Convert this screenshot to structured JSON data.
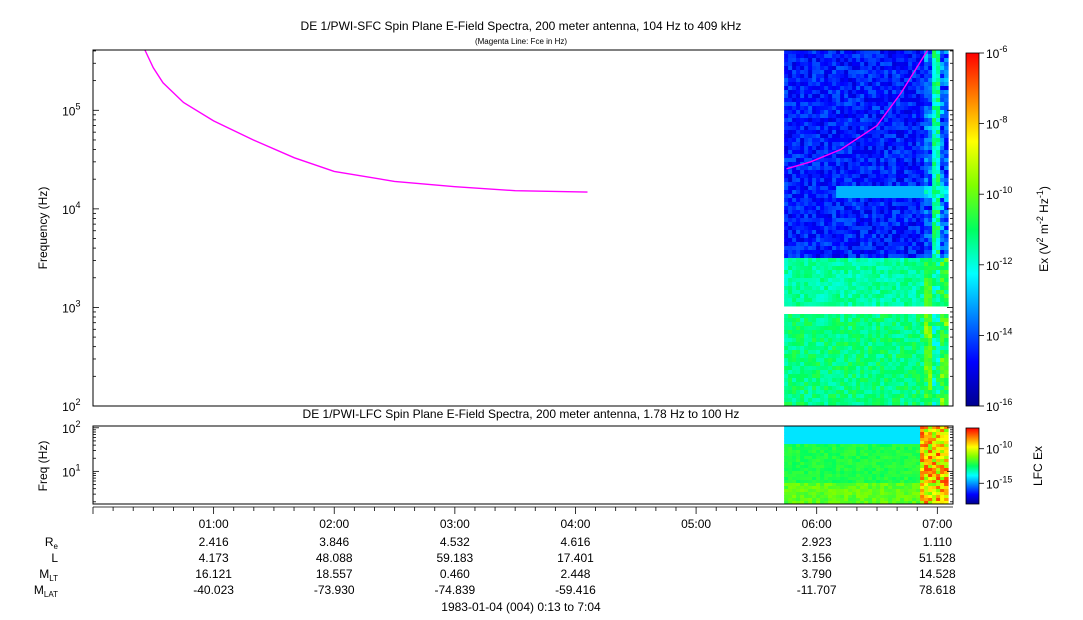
{
  "chart_data": [
    {
      "type": "heatmap",
      "title": "DE 1/PWI-SFC  Spin Plane E-Field Spectra, 200 meter antenna, 104 Hz to 409 kHz",
      "subtitle": "(Magenta Line: Fce in Hz)",
      "ylabel": "Frequency (Hz)",
      "yscale": "log",
      "ylim": [
        100,
        409000
      ],
      "yticks": [
        {
          "value": 100,
          "base": "10",
          "exp": "2"
        },
        {
          "value": 1000,
          "base": "10",
          "exp": "3"
        },
        {
          "value": 10000,
          "base": "10",
          "exp": "4"
        },
        {
          "value": 100000,
          "base": "10",
          "exp": "5"
        }
      ],
      "colorbar": {
        "label_parts": [
          "Ex (V",
          "2",
          " m",
          "-2",
          " Hz",
          "-1",
          ")"
        ],
        "scale": "log",
        "range": [
          1e-16,
          1e-06
        ],
        "ticks": [
          {
            "value": 1e-06,
            "base": "10",
            "exp": "-6"
          },
          {
            "value": 1e-08,
            "base": "10",
            "exp": "-8"
          },
          {
            "value": 1e-10,
            "base": "10",
            "exp": "-10"
          },
          {
            "value": 1e-12,
            "base": "10",
            "exp": "-12"
          },
          {
            "value": 1e-14,
            "base": "10",
            "exp": "-14"
          },
          {
            "value": 1e-16,
            "base": "10",
            "exp": "-16"
          }
        ]
      },
      "data_coverage_hours": [
        5.73,
        7.07
      ],
      "fce_line": {
        "segments": [
          [
            [
              0.43,
              409000
            ],
            [
              0.5,
              270000
            ],
            [
              0.58,
              190000
            ],
            [
              0.75,
              120000
            ],
            [
              1.0,
              78000
            ],
            [
              1.33,
              50000
            ],
            [
              1.67,
              33000
            ],
            [
              2.0,
              24000
            ],
            [
              2.5,
              19000
            ],
            [
              3.0,
              16800
            ],
            [
              3.5,
              15300
            ],
            [
              4.1,
              14800
            ]
          ],
          [
            [
              5.75,
              25500
            ],
            [
              5.95,
              30000
            ],
            [
              6.2,
              40000
            ],
            [
              6.5,
              70000
            ],
            [
              6.7,
              150000
            ],
            [
              6.92,
              409000
            ]
          ]
        ]
      }
    },
    {
      "type": "heatmap",
      "title": "DE 1/PWI-LFC  Spin Plane E-Field Spectra, 200 meter antenna, 1.78 Hz to 100 Hz",
      "ylabel": "Freq (Hz)",
      "yscale": "log",
      "ylim": [
        1.78,
        110
      ],
      "yticks": [
        {
          "value": 10,
          "base": "10",
          "exp": "1"
        },
        {
          "value": 100,
          "base": "10",
          "exp": "2"
        }
      ],
      "colorbar": {
        "label": "LFC Ex",
        "scale": "log",
        "range": [
          1e-18,
          1e-07
        ],
        "ticks": [
          {
            "value": 1e-10,
            "base": "10",
            "exp": "-10"
          },
          {
            "value": 1e-15,
            "base": "10",
            "exp": "-15"
          }
        ]
      },
      "data_coverage_hours": [
        5.73,
        7.07
      ]
    }
  ],
  "time_axis": {
    "xlim_hours": [
      0.0,
      7.13
    ],
    "ticks": [
      {
        "hour": 1,
        "label": "01:00"
      },
      {
        "hour": 2,
        "label": "02:00"
      },
      {
        "hour": 3,
        "label": "03:00"
      },
      {
        "hour": 4,
        "label": "04:00"
      },
      {
        "hour": 5,
        "label": "05:00"
      },
      {
        "hour": 6,
        "label": "06:00"
      },
      {
        "hour": 7,
        "label": "07:00"
      }
    ]
  },
  "ephemeris": {
    "rows": [
      {
        "label": "R",
        "sub": "e",
        "values": [
          "2.416",
          "3.846",
          "4.532",
          "4.616",
          "",
          "2.923",
          "1.110"
        ]
      },
      {
        "label": "L",
        "sub": "",
        "values": [
          "4.173",
          "48.088",
          "59.183",
          "17.401",
          "",
          "3.156",
          "51.528"
        ]
      },
      {
        "label": "M",
        "sub": "LT",
        "values": [
          "16.121",
          "18.557",
          "0.460",
          "2.448",
          "",
          "3.790",
          "14.528"
        ]
      },
      {
        "label": "M",
        "sub": "LAT",
        "values": [
          "-40.023",
          "-73.930",
          "-74.839",
          "-59.416",
          "",
          "-11.707",
          "78.618"
        ]
      }
    ]
  },
  "footer": {
    "time_range": "1983-01-04 (004) 0:13 to 7:04"
  },
  "colors": {
    "fce_line": "#ff00ff",
    "frame": "#000000"
  }
}
